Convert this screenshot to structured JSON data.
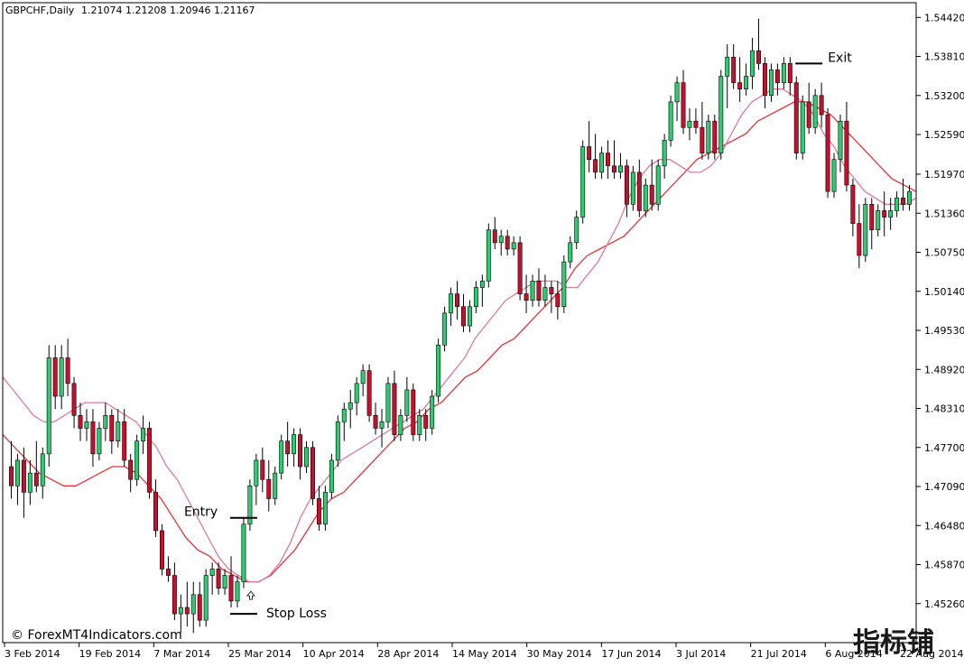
{
  "header": {
    "symbol_timeframe": "GBPCHF,Daily",
    "ohlc": "1.21074 1.21208 1.20946 1.21167"
  },
  "copyright": "© ForexMT4Indicators.com",
  "watermark": "指标铺",
  "colors": {
    "bull": "#2ecc71",
    "bear": "#c8102e",
    "wick": "#000000",
    "ma_fast": "#e07a9a",
    "ma_slow": "#e8333a",
    "axis": "#000000",
    "background": "#ffffff"
  },
  "chart_data": {
    "type": "candlestick",
    "ylim": [
      1.4465,
      1.5465
    ],
    "y_ticks": [
      "1.54420",
      "1.53810",
      "1.53200",
      "1.52590",
      "1.51970",
      "1.51360",
      "1.50750",
      "1.50140",
      "1.49530",
      "1.48920",
      "1.48310",
      "1.47700",
      "1.47090",
      "1.46480",
      "1.45870",
      "1.45260"
    ],
    "x_ticks": [
      "3 Feb 2014",
      "19 Feb 2014",
      "7 Mar 2014",
      "25 Mar 2014",
      "10 Apr 2014",
      "28 Apr 2014",
      "14 May 2014",
      "30 May 2014",
      "17 Jun 2014",
      "3 Jul 2014",
      "21 Jul 2014",
      "6 Aug 2014",
      "22 Aug 2014"
    ],
    "candles": [
      [
        1.474,
        1.478,
        1.469,
        1.471
      ],
      [
        1.471,
        1.476,
        1.468,
        1.475
      ],
      [
        1.475,
        1.477,
        1.466,
        1.47
      ],
      [
        1.47,
        1.475,
        1.468,
        1.473
      ],
      [
        1.473,
        1.478,
        1.47,
        1.471
      ],
      [
        1.471,
        1.477,
        1.469,
        1.476
      ],
      [
        1.476,
        1.493,
        1.474,
        1.491
      ],
      [
        1.491,
        1.493,
        1.483,
        1.485
      ],
      [
        1.485,
        1.493,
        1.483,
        1.491
      ],
      [
        1.491,
        1.494,
        1.485,
        1.487
      ],
      [
        1.487,
        1.488,
        1.48,
        1.482
      ],
      [
        1.482,
        1.484,
        1.478,
        1.48
      ],
      [
        1.48,
        1.483,
        1.478,
        1.481
      ],
      [
        1.481,
        1.483,
        1.474,
        1.476
      ],
      [
        1.476,
        1.481,
        1.475,
        1.48
      ],
      [
        1.48,
        1.484,
        1.478,
        1.482
      ],
      [
        1.482,
        1.483,
        1.476,
        1.478
      ],
      [
        1.478,
        1.483,
        1.477,
        1.481
      ],
      [
        1.481,
        1.483,
        1.474,
        1.475
      ],
      [
        1.475,
        1.476,
        1.47,
        1.472
      ],
      [
        1.472,
        1.479,
        1.471,
        1.478
      ],
      [
        1.478,
        1.482,
        1.476,
        1.48
      ],
      [
        1.48,
        1.481,
        1.469,
        1.47
      ],
      [
        1.47,
        1.472,
        1.463,
        1.464
      ],
      [
        1.464,
        1.465,
        1.457,
        1.458
      ],
      [
        1.458,
        1.46,
        1.456,
        1.457
      ],
      [
        1.457,
        1.459,
        1.45,
        1.451
      ],
      [
        1.451,
        1.454,
        1.448,
        1.452
      ],
      [
        1.452,
        1.456,
        1.449,
        1.451
      ],
      [
        1.451,
        1.456,
        1.448,
        1.454
      ],
      [
        1.454,
        1.456,
        1.449,
        1.45
      ],
      [
        1.45,
        1.458,
        1.449,
        1.457
      ],
      [
        1.457,
        1.459,
        1.454,
        1.458
      ],
      [
        1.458,
        1.459,
        1.454,
        1.455
      ],
      [
        1.455,
        1.458,
        1.454,
        1.457
      ],
      [
        1.457,
        1.46,
        1.452,
        1.453
      ],
      [
        1.453,
        1.457,
        1.452,
        1.456
      ],
      [
        1.456,
        1.466,
        1.455,
        1.465
      ],
      [
        1.465,
        1.472,
        1.464,
        1.471
      ],
      [
        1.471,
        1.476,
        1.468,
        1.475
      ],
      [
        1.475,
        1.477,
        1.47,
        1.472
      ],
      [
        1.472,
        1.475,
        1.467,
        1.469
      ],
      [
        1.469,
        1.474,
        1.468,
        1.473
      ],
      [
        1.473,
        1.479,
        1.472,
        1.478
      ],
      [
        1.478,
        1.481,
        1.474,
        1.476
      ],
      [
        1.476,
        1.48,
        1.474,
        1.479
      ],
      [
        1.479,
        1.48,
        1.472,
        1.474
      ],
      [
        1.474,
        1.478,
        1.473,
        1.477
      ],
      [
        1.477,
        1.478,
        1.468,
        1.469
      ],
      [
        1.469,
        1.471,
        1.464,
        1.465
      ],
      [
        1.465,
        1.471,
        1.464,
        1.47
      ],
      [
        1.47,
        1.476,
        1.469,
        1.475
      ],
      [
        1.475,
        1.482,
        1.474,
        1.481
      ],
      [
        1.481,
        1.484,
        1.478,
        1.483
      ],
      [
        1.483,
        1.486,
        1.48,
        1.484
      ],
      [
        1.484,
        1.488,
        1.482,
        1.487
      ],
      [
        1.487,
        1.49,
        1.485,
        1.489
      ],
      [
        1.489,
        1.49,
        1.481,
        1.482
      ],
      [
        1.482,
        1.484,
        1.479,
        1.48
      ],
      [
        1.48,
        1.483,
        1.477,
        1.481
      ],
      [
        1.481,
        1.488,
        1.48,
        1.487
      ],
      [
        1.487,
        1.489,
        1.478,
        1.479
      ],
      [
        1.479,
        1.483,
        1.478,
        1.482
      ],
      [
        1.482,
        1.488,
        1.481,
        1.486
      ],
      [
        1.486,
        1.487,
        1.478,
        1.479
      ],
      [
        1.479,
        1.483,
        1.478,
        1.482
      ],
      [
        1.482,
        1.483,
        1.478,
        1.48
      ],
      [
        1.48,
        1.486,
        1.479,
        1.485
      ],
      [
        1.485,
        1.494,
        1.484,
        1.493
      ],
      [
        1.493,
        1.499,
        1.492,
        1.498
      ],
      [
        1.498,
        1.502,
        1.496,
        1.501
      ],
      [
        1.501,
        1.503,
        1.497,
        1.499
      ],
      [
        1.499,
        1.501,
        1.495,
        1.496
      ],
      [
        1.496,
        1.5,
        1.495,
        1.499
      ],
      [
        1.499,
        1.503,
        1.498,
        1.502
      ],
      [
        1.502,
        1.504,
        1.499,
        1.503
      ],
      [
        1.503,
        1.512,
        1.502,
        1.511
      ],
      [
        1.511,
        1.513,
        1.508,
        1.509
      ],
      [
        1.509,
        1.511,
        1.507,
        1.51
      ],
      [
        1.51,
        1.511,
        1.507,
        1.508
      ],
      [
        1.508,
        1.51,
        1.507,
        1.509
      ],
      [
        1.509,
        1.51,
        1.5,
        1.501
      ],
      [
        1.501,
        1.504,
        1.498,
        1.5
      ],
      [
        1.5,
        1.504,
        1.499,
        1.503
      ],
      [
        1.503,
        1.505,
        1.499,
        1.5
      ],
      [
        1.5,
        1.504,
        1.499,
        1.502
      ],
      [
        1.502,
        1.503,
        1.498,
        1.501
      ],
      [
        1.501,
        1.503,
        1.497,
        1.499
      ],
      [
        1.499,
        1.507,
        1.498,
        1.506
      ],
      [
        1.506,
        1.51,
        1.505,
        1.509
      ],
      [
        1.509,
        1.514,
        1.508,
        1.513
      ],
      [
        1.513,
        1.525,
        1.512,
        1.524
      ],
      [
        1.524,
        1.528,
        1.52,
        1.522
      ],
      [
        1.522,
        1.526,
        1.519,
        1.52
      ],
      [
        1.52,
        1.524,
        1.519,
        1.523
      ],
      [
        1.523,
        1.525,
        1.519,
        1.521
      ],
      [
        1.521,
        1.525,
        1.519,
        1.52
      ],
      [
        1.52,
        1.523,
        1.519,
        1.521
      ],
      [
        1.521,
        1.522,
        1.513,
        1.515
      ],
      [
        1.515,
        1.521,
        1.514,
        1.52
      ],
      [
        1.52,
        1.522,
        1.513,
        1.514
      ],
      [
        1.514,
        1.519,
        1.513,
        1.518
      ],
      [
        1.518,
        1.522,
        1.514,
        1.515
      ],
      [
        1.515,
        1.522,
        1.514,
        1.521
      ],
      [
        1.521,
        1.526,
        1.519,
        1.525
      ],
      [
        1.525,
        1.532,
        1.524,
        1.531
      ],
      [
        1.531,
        1.535,
        1.528,
        1.534
      ],
      [
        1.534,
        1.536,
        1.526,
        1.527
      ],
      [
        1.527,
        1.53,
        1.525,
        1.528
      ],
      [
        1.528,
        1.53,
        1.526,
        1.527
      ],
      [
        1.527,
        1.531,
        1.522,
        1.523
      ],
      [
        1.523,
        1.529,
        1.522,
        1.528
      ],
      [
        1.528,
        1.529,
        1.522,
        1.523
      ],
      [
        1.523,
        1.536,
        1.522,
        1.535
      ],
      [
        1.535,
        1.54,
        1.53,
        1.538
      ],
      [
        1.538,
        1.54,
        1.533,
        1.534
      ],
      [
        1.534,
        1.538,
        1.531,
        1.533
      ],
      [
        1.533,
        1.537,
        1.532,
        1.535
      ],
      [
        1.535,
        1.541,
        1.533,
        1.539
      ],
      [
        1.539,
        1.544,
        1.536,
        1.537
      ],
      [
        1.537,
        1.538,
        1.53,
        1.532
      ],
      [
        1.532,
        1.537,
        1.531,
        1.536
      ],
      [
        1.536,
        1.537,
        1.532,
        1.534
      ],
      [
        1.534,
        1.538,
        1.533,
        1.537
      ],
      [
        1.537,
        1.538,
        1.532,
        1.534
      ],
      [
        1.534,
        1.535,
        1.522,
        1.523
      ],
      [
        1.523,
        1.532,
        1.522,
        1.531
      ],
      [
        1.531,
        1.534,
        1.526,
        1.527
      ],
      [
        1.527,
        1.533,
        1.526,
        1.532
      ],
      [
        1.532,
        1.534,
        1.527,
        1.529
      ],
      [
        1.529,
        1.53,
        1.516,
        1.517
      ],
      [
        1.517,
        1.523,
        1.516,
        1.522
      ],
      [
        1.522,
        1.529,
        1.52,
        1.528
      ],
      [
        1.528,
        1.531,
        1.517,
        1.518
      ],
      [
        1.518,
        1.519,
        1.51,
        1.512
      ],
      [
        1.512,
        1.515,
        1.505,
        1.507
      ],
      [
        1.507,
        1.516,
        1.506,
        1.515
      ],
      [
        1.515,
        1.516,
        1.508,
        1.511
      ],
      [
        1.511,
        1.515,
        1.51,
        1.514
      ],
      [
        1.514,
        1.517,
        1.51,
        1.513
      ],
      [
        1.513,
        1.516,
        1.511,
        1.514
      ],
      [
        1.514,
        1.517,
        1.513,
        1.516
      ],
      [
        1.516,
        1.519,
        1.514,
        1.515
      ],
      [
        1.515,
        1.518,
        1.514,
        1.517
      ]
    ],
    "ma_fast": [
      1.488,
      1.486,
      1.484,
      1.482,
      1.481,
      1.481,
      1.482,
      1.483,
      1.484,
      1.484,
      1.484,
      1.483,
      1.482,
      1.481,
      1.479,
      1.477,
      1.474,
      1.472,
      1.469,
      1.466,
      1.463,
      1.46,
      1.458,
      1.457,
      1.456,
      1.456,
      1.457,
      1.459,
      1.462,
      1.466,
      1.469,
      1.471,
      1.473,
      1.475,
      1.476,
      1.477,
      1.478,
      1.479,
      1.48,
      1.481,
      1.482,
      1.483,
      1.485,
      1.487,
      1.489,
      1.491,
      1.494,
      1.496,
      1.498,
      1.5,
      1.501,
      1.502,
      1.503,
      1.503,
      1.503,
      1.502,
      1.502,
      1.504,
      1.506,
      1.509,
      1.512,
      1.516,
      1.519,
      1.521,
      1.522,
      1.522,
      1.521,
      1.52,
      1.52,
      1.521,
      1.523,
      1.526,
      1.529,
      1.531,
      1.532,
      1.533,
      1.533,
      1.532,
      1.531,
      1.529,
      1.526,
      1.524,
      1.521,
      1.519,
      1.517,
      1.516,
      1.515,
      1.515,
      1.515,
      1.516
    ],
    "ma_slow": [
      1.479,
      1.477,
      1.475,
      1.473,
      1.472,
      1.471,
      1.471,
      1.472,
      1.473,
      1.474,
      1.474,
      1.473,
      1.471,
      1.469,
      1.466,
      1.463,
      1.461,
      1.46,
      1.458,
      1.457,
      1.456,
      1.456,
      1.457,
      1.459,
      1.461,
      1.464,
      1.467,
      1.469,
      1.47,
      1.472,
      1.474,
      1.476,
      1.478,
      1.48,
      1.481,
      1.483,
      1.484,
      1.486,
      1.488,
      1.489,
      1.491,
      1.493,
      1.494,
      1.496,
      1.498,
      1.5,
      1.502,
      1.505,
      1.507,
      1.508,
      1.509,
      1.51,
      1.512,
      1.514,
      1.516,
      1.518,
      1.52,
      1.522,
      1.523,
      1.524,
      1.525,
      1.526,
      1.528,
      1.529,
      1.53,
      1.531,
      1.531,
      1.53,
      1.529,
      1.527,
      1.525,
      1.523,
      1.521,
      1.519,
      1.518,
      1.517
    ]
  },
  "annotations": {
    "entry": {
      "label": "Entry",
      "price": 1.466,
      "index": 37
    },
    "stop_loss": {
      "label": "Stop Loss",
      "price": 1.451,
      "index": 37
    },
    "exit": {
      "label": "Exit",
      "price": 1.537,
      "index": 127
    }
  }
}
